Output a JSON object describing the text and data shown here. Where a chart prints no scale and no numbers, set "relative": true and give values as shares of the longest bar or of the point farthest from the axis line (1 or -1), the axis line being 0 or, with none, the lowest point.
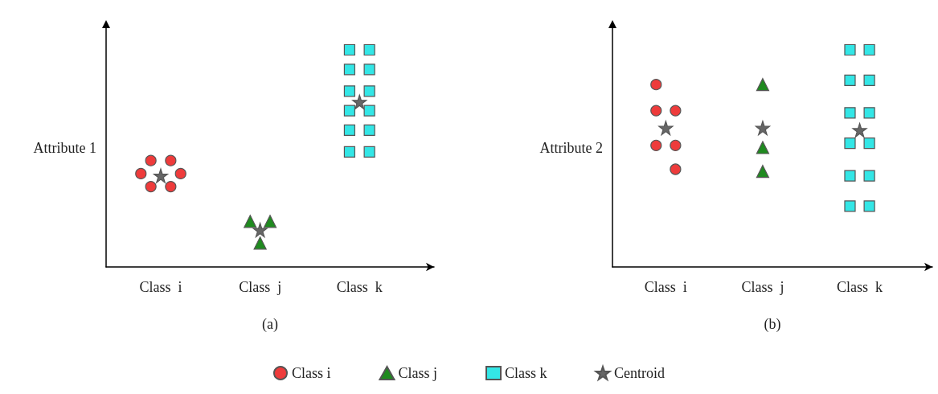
{
  "chart_data": [
    {
      "type": "scatter",
      "relative": true,
      "xlabel": "(a)",
      "ylabel": "Attribute 1",
      "categories": [
        null,
        null,
        null,
        null,
        null,
        "Class  i",
        null,
        null,
        null,
        null,
        null,
        null,
        null,
        null,
        null,
        "Class  j",
        null,
        null,
        null,
        null,
        null,
        null,
        null,
        null,
        null,
        "Class  k",
        null,
        null,
        null,
        null,
        null,
        null,
        null
      ],
      "grid": false,
      "legend": false,
      "series": [
        {
          "color": "#ee3b3b",
          "marker": "circle",
          "values": [
            null,
            null,
            null,
            0.43,
            0.49,
            null,
            0.49,
            0.43,
            null,
            null,
            null,
            null,
            null,
            null,
            null,
            null,
            null,
            null,
            null,
            null,
            null,
            null,
            null,
            null,
            null,
            null,
            null,
            null,
            null,
            null,
            null,
            null,
            null
          ]
        },
        {
          "color": "#ee3b3b",
          "marker": "circle",
          "values": [
            null,
            null,
            null,
            null,
            0.37,
            null,
            0.37,
            null,
            null,
            null,
            null,
            null,
            null,
            null,
            null,
            null,
            null,
            null,
            null,
            null,
            null,
            null,
            null,
            null,
            null,
            null,
            null,
            null,
            null,
            null,
            null,
            null,
            null
          ]
        },
        {
          "color": "#1f8a1f",
          "marker": "triangle",
          "values": [
            null,
            null,
            null,
            null,
            null,
            null,
            null,
            null,
            null,
            null,
            null,
            null,
            null,
            null,
            0.21,
            0.11,
            0.21,
            null,
            null,
            null,
            null,
            null,
            null,
            null,
            null,
            null,
            null,
            null,
            null,
            null,
            null,
            null,
            null
          ]
        },
        {
          "color": "#33e6e6",
          "marker": "square",
          "values": [
            null,
            null,
            null,
            null,
            null,
            null,
            null,
            null,
            null,
            null,
            null,
            null,
            null,
            null,
            null,
            null,
            null,
            null,
            null,
            null,
            null,
            null,
            null,
            null,
            1.0,
            null,
            1.0,
            null,
            null,
            null,
            null,
            null,
            null
          ]
        },
        {
          "color": "#33e6e6",
          "marker": "square",
          "values": [
            null,
            null,
            null,
            null,
            null,
            null,
            null,
            null,
            null,
            null,
            null,
            null,
            null,
            null,
            null,
            null,
            null,
            null,
            null,
            null,
            null,
            null,
            null,
            null,
            0.91,
            null,
            0.91,
            null,
            null,
            null,
            null,
            null,
            null
          ]
        },
        {
          "color": "#33e6e6",
          "marker": "square",
          "values": [
            null,
            null,
            null,
            null,
            null,
            null,
            null,
            null,
            null,
            null,
            null,
            null,
            null,
            null,
            null,
            null,
            null,
            null,
            null,
            null,
            null,
            null,
            null,
            null,
            0.81,
            null,
            0.81,
            null,
            null,
            null,
            null,
            null,
            null
          ]
        },
        {
          "color": "#33e6e6",
          "marker": "square",
          "values": [
            null,
            null,
            null,
            null,
            null,
            null,
            null,
            null,
            null,
            null,
            null,
            null,
            null,
            null,
            null,
            null,
            null,
            null,
            null,
            null,
            null,
            null,
            null,
            null,
            0.72,
            null,
            0.72,
            null,
            null,
            null,
            null,
            null,
            null
          ]
        },
        {
          "color": "#33e6e6",
          "marker": "square",
          "values": [
            null,
            null,
            null,
            null,
            null,
            null,
            null,
            null,
            null,
            null,
            null,
            null,
            null,
            null,
            null,
            null,
            null,
            null,
            null,
            null,
            null,
            null,
            null,
            null,
            0.63,
            null,
            0.63,
            null,
            null,
            null,
            null,
            null,
            null
          ]
        },
        {
          "color": "#33e6e6",
          "marker": "square",
          "values": [
            null,
            null,
            null,
            null,
            null,
            null,
            null,
            null,
            null,
            null,
            null,
            null,
            null,
            null,
            null,
            null,
            null,
            null,
            null,
            null,
            null,
            null,
            null,
            null,
            0.53,
            null,
            0.53,
            null,
            null,
            null,
            null,
            null,
            null
          ]
        },
        {
          "color": "#666666",
          "marker": "star",
          "values": [
            null,
            null,
            null,
            null,
            null,
            0.42,
            null,
            null,
            null,
            null,
            null,
            null,
            null,
            null,
            null,
            0.17,
            null,
            null,
            null,
            null,
            null,
            null,
            null,
            null,
            null,
            0.76,
            null,
            null,
            null,
            null,
            null,
            null,
            null
          ]
        }
      ]
    },
    {
      "type": "scatter",
      "relative": true,
      "xlabel": "(b)",
      "ylabel": "Attribute 2",
      "categories": [
        null,
        null,
        null,
        null,
        null,
        "Class  i",
        null,
        null,
        null,
        null,
        null,
        null,
        null,
        null,
        null,
        "Class  j",
        null,
        null,
        null,
        null,
        null,
        null,
        null,
        null,
        null,
        "Class  k",
        null,
        null,
        null,
        null,
        null,
        null,
        null
      ],
      "grid": false,
      "legend": "bottom",
      "series": [
        {
          "name": "Class i",
          "color": "#ee3b3b",
          "marker": "circle",
          "values": [
            null,
            null,
            null,
            null,
            0.84,
            null,
            0.72,
            null,
            null,
            null,
            null,
            null,
            null,
            null,
            null,
            null,
            null,
            null,
            null,
            null,
            null,
            null,
            null,
            null,
            null,
            null,
            null,
            null,
            null,
            null,
            null,
            null,
            null
          ]
        },
        {
          "color": "#ee3b3b",
          "marker": "circle",
          "values": [
            null,
            null,
            null,
            null,
            0.72,
            null,
            0.56,
            null,
            null,
            null,
            null,
            null,
            null,
            null,
            null,
            null,
            null,
            null,
            null,
            null,
            null,
            null,
            null,
            null,
            null,
            null,
            null,
            null,
            null,
            null,
            null,
            null,
            null
          ]
        },
        {
          "color": "#ee3b3b",
          "marker": "circle",
          "values": [
            null,
            null,
            null,
            null,
            0.56,
            null,
            0.45,
            null,
            null,
            null,
            null,
            null,
            null,
            null,
            null,
            null,
            null,
            null,
            null,
            null,
            null,
            null,
            null,
            null,
            null,
            null,
            null,
            null,
            null,
            null,
            null,
            null,
            null
          ]
        },
        {
          "name": "Class j",
          "color": "#1f8a1f",
          "marker": "triangle",
          "values": [
            null,
            null,
            null,
            null,
            null,
            null,
            null,
            null,
            null,
            null,
            null,
            null,
            null,
            null,
            null,
            0.84,
            null,
            null,
            null,
            null,
            null,
            null,
            null,
            null,
            null,
            null,
            null,
            null,
            null,
            null,
            null,
            null,
            null
          ]
        },
        {
          "color": "#1f8a1f",
          "marker": "triangle",
          "values": [
            null,
            null,
            null,
            null,
            null,
            null,
            null,
            null,
            null,
            null,
            null,
            null,
            null,
            null,
            null,
            0.55,
            null,
            null,
            null,
            null,
            null,
            null,
            null,
            null,
            null,
            null,
            null,
            null,
            null,
            null,
            null,
            null,
            null
          ]
        },
        {
          "color": "#1f8a1f",
          "marker": "triangle",
          "values": [
            null,
            null,
            null,
            null,
            null,
            null,
            null,
            null,
            null,
            null,
            null,
            null,
            null,
            null,
            null,
            0.44,
            null,
            null,
            null,
            null,
            null,
            null,
            null,
            null,
            null,
            null,
            null,
            null,
            null,
            null,
            null,
            null,
            null
          ]
        },
        {
          "name": "Class k",
          "color": "#33e6e6",
          "marker": "square",
          "values": [
            null,
            null,
            null,
            null,
            null,
            null,
            null,
            null,
            null,
            null,
            null,
            null,
            null,
            null,
            null,
            null,
            null,
            null,
            null,
            null,
            null,
            null,
            null,
            null,
            1.0,
            null,
            1.0,
            null,
            null,
            null,
            null,
            null,
            null
          ]
        },
        {
          "color": "#33e6e6",
          "marker": "square",
          "values": [
            null,
            null,
            null,
            null,
            null,
            null,
            null,
            null,
            null,
            null,
            null,
            null,
            null,
            null,
            null,
            null,
            null,
            null,
            null,
            null,
            null,
            null,
            null,
            null,
            0.86,
            null,
            0.86,
            null,
            null,
            null,
            null,
            null,
            null
          ]
        },
        {
          "color": "#33e6e6",
          "marker": "square",
          "values": [
            null,
            null,
            null,
            null,
            null,
            null,
            null,
            null,
            null,
            null,
            null,
            null,
            null,
            null,
            null,
            null,
            null,
            null,
            null,
            null,
            null,
            null,
            null,
            null,
            0.71,
            null,
            0.71,
            null,
            null,
            null,
            null,
            null,
            null
          ]
        },
        {
          "color": "#33e6e6",
          "marker": "square",
          "values": [
            null,
            null,
            null,
            null,
            null,
            null,
            null,
            null,
            null,
            null,
            null,
            null,
            null,
            null,
            null,
            null,
            null,
            null,
            null,
            null,
            null,
            null,
            null,
            null,
            0.57,
            null,
            0.57,
            null,
            null,
            null,
            null,
            null,
            null
          ]
        },
        {
          "color": "#33e6e6",
          "marker": "square",
          "values": [
            null,
            null,
            null,
            null,
            null,
            null,
            null,
            null,
            null,
            null,
            null,
            null,
            null,
            null,
            null,
            null,
            null,
            null,
            null,
            null,
            null,
            null,
            null,
            null,
            0.42,
            null,
            0.42,
            null,
            null,
            null,
            null,
            null,
            null
          ]
        },
        {
          "color": "#33e6e6",
          "marker": "square",
          "values": [
            null,
            null,
            null,
            null,
            null,
            null,
            null,
            null,
            null,
            null,
            null,
            null,
            null,
            null,
            null,
            null,
            null,
            null,
            null,
            null,
            null,
            null,
            null,
            null,
            0.28,
            null,
            0.28,
            null,
            null,
            null,
            null,
            null,
            null
          ]
        },
        {
          "name": "Centroid",
          "color": "#666666",
          "marker": "star",
          "values": [
            null,
            null,
            null,
            null,
            null,
            0.64,
            null,
            null,
            null,
            null,
            null,
            null,
            null,
            null,
            null,
            0.64,
            null,
            null,
            null,
            null,
            null,
            null,
            null,
            null,
            null,
            0.63,
            null,
            null,
            null,
            null,
            null,
            null,
            null
          ]
        }
      ]
    }
  ]
}
